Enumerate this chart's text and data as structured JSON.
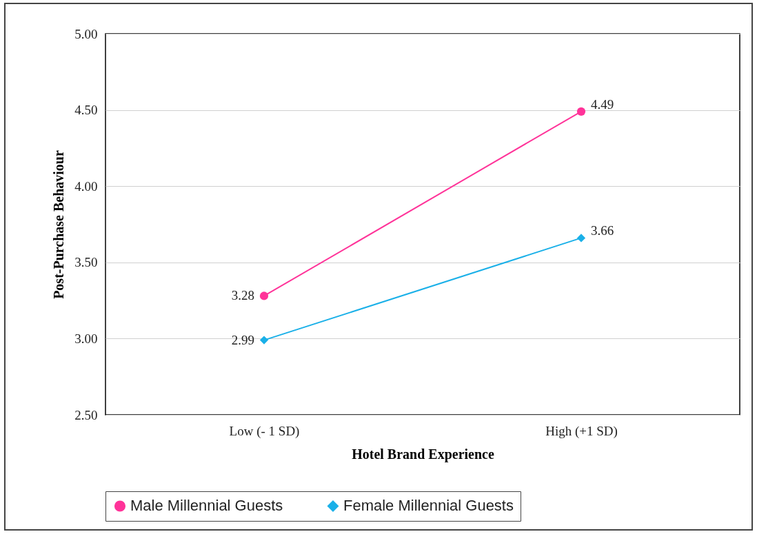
{
  "chart_data": {
    "type": "line",
    "xlabel": "Hotel Brand Experience",
    "ylabel": "Post-Purchase Behaviour",
    "categories": [
      "Low (- 1 SD)",
      "High (+1 SD)"
    ],
    "series": [
      {
        "name": "Male Millennial Guests",
        "color": "#ff3399",
        "values": [
          3.28,
          4.49
        ],
        "marker": "circle"
      },
      {
        "name": "Female Millennial Guests",
        "color": "#1ab0e8",
        "values": [
          2.99,
          3.66
        ],
        "marker": "diamond"
      }
    ],
    "ylim": [
      2.5,
      5
    ],
    "yticks": [
      {
        "value": 2.5,
        "label": "2.50"
      },
      {
        "value": 3,
        "label": "3.00"
      },
      {
        "value": 3.5,
        "label": "3.50"
      },
      {
        "value": 4,
        "label": "4.00"
      },
      {
        "value": 4.5,
        "label": "4.50"
      },
      {
        "value": 5,
        "label": "5.00"
      }
    ],
    "grid": "y",
    "legend": "bottom",
    "data_labels": true,
    "line_style": "solid"
  }
}
